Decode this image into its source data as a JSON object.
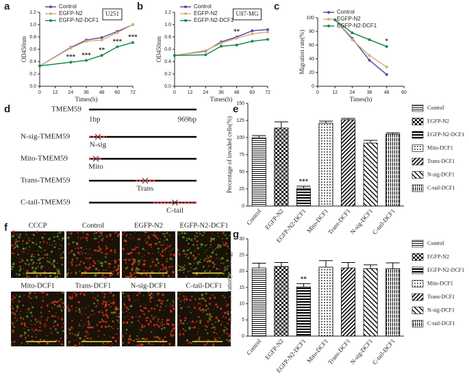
{
  "panel_labels": [
    "a",
    "b",
    "c",
    "d",
    "e",
    "f",
    "g"
  ],
  "chart_data": [
    {
      "type": "line",
      "title": "U251",
      "x_label": "Times(h)",
      "y_label": "OD450nm",
      "x": [
        0,
        24,
        36,
        48,
        60,
        72
      ],
      "xlim": [
        0,
        72
      ],
      "xticks": [
        0,
        12,
        24,
        36,
        48,
        60,
        72
      ],
      "ylim": [
        0,
        1.2
      ],
      "yticks": [
        {
          "value": 0,
          "label": "0.0"
        },
        {
          "value": 0.2,
          "label": "0.2"
        },
        {
          "value": 0.4,
          "label": "0.4"
        },
        {
          "value": 0.6,
          "label": "0.6"
        },
        {
          "value": 0.8,
          "label": "0.8"
        },
        {
          "value": 1,
          "label": "1.0"
        },
        {
          "value": 1.2,
          "label": "1.2"
        }
      ],
      "series": [
        {
          "name": "Control",
          "color": "#5b4ea0",
          "values": [
            0.33,
            0.63,
            0.75,
            0.79,
            0.89,
            1.0
          ]
        },
        {
          "name": "EGFP-N2",
          "color": "#d4b07a",
          "values": [
            0.33,
            0.62,
            0.73,
            0.75,
            0.87,
            1.0
          ]
        },
        {
          "name": "EGFP-N2-DCF1",
          "color": "#1a8a4a",
          "values": [
            0.33,
            0.39,
            0.42,
            0.5,
            0.64,
            0.71
          ]
        }
      ],
      "annotations": [
        null,
        "***",
        "***",
        "**",
        "***",
        "***"
      ]
    },
    {
      "type": "line",
      "title": "U87-MG",
      "x_label": "Times(h)",
      "y_label": "OD450nm",
      "x": [
        0,
        24,
        36,
        48,
        60,
        72
      ],
      "xlim": [
        0,
        72
      ],
      "xticks": [
        0,
        12,
        24,
        36,
        48,
        60,
        72
      ],
      "ylim": [
        0,
        1.2
      ],
      "yticks": [
        {
          "value": 0,
          "label": "0.0"
        },
        {
          "value": 0.2,
          "label": "0.2"
        },
        {
          "value": 0.4,
          "label": "0.4"
        },
        {
          "value": 0.6,
          "label": "0.6"
        },
        {
          "value": 0.8,
          "label": "0.8"
        },
        {
          "value": 1,
          "label": "1.0"
        },
        {
          "value": 1.2,
          "label": "1.2"
        }
      ],
      "series": [
        {
          "name": "Control",
          "color": "#5b4ea0",
          "values": [
            0.5,
            0.57,
            0.72,
            0.8,
            0.9,
            0.92
          ]
        },
        {
          "name": "EGFP-N2",
          "color": "#d4b07a",
          "values": [
            0.5,
            0.58,
            0.7,
            0.78,
            0.85,
            0.88
          ]
        },
        {
          "name": "EGFP-N2-DCF1",
          "color": "#1a8a4a",
          "values": [
            0.5,
            0.51,
            0.65,
            0.67,
            0.73,
            0.76
          ]
        }
      ],
      "annotations": [
        null,
        null,
        null,
        "**",
        null,
        null
      ]
    },
    {
      "type": "line",
      "x_label": "Times(h)",
      "y_label": "Migration rate(%)",
      "x": [
        12,
        24,
        36,
        48
      ],
      "xlim": [
        0,
        60
      ],
      "xticks": [
        0,
        12,
        24,
        36,
        48,
        60
      ],
      "ylim": [
        0,
        100
      ],
      "yticks": [
        0,
        20,
        40,
        60,
        80,
        100
      ],
      "series": [
        {
          "name": "Control",
          "color": "#5b4ea0",
          "values": [
            97,
            70,
            38,
            17
          ]
        },
        {
          "name": "EGFP-N2",
          "color": "#d4b07a",
          "values": [
            97,
            68,
            45,
            28
          ]
        },
        {
          "name": "EGFP-N2-DCF1",
          "color": "#1a8a4a",
          "values": [
            97,
            78,
            68,
            58
          ]
        }
      ],
      "annotations": [
        null,
        null,
        null,
        "*"
      ]
    },
    {
      "type": "bar",
      "y_label": "Percentage of invaded cells(%)",
      "categories": [
        "Control",
        "EGFP-N2",
        "EGFP-N2-DCF1",
        "Mito-DCF1",
        "Trans-DCF1",
        "N-sig-DCF1",
        "C-tail-DCF1"
      ],
      "values": [
        100,
        114,
        26,
        121,
        126,
        92,
        105
      ],
      "errors": [
        3,
        9,
        3,
        3,
        2,
        4,
        2
      ],
      "ylim": [
        0,
        150
      ],
      "yticks": [
        0,
        25,
        50,
        75,
        100,
        125,
        150
      ],
      "annotations": [
        null,
        null,
        "***",
        null,
        null,
        null,
        null
      ]
    },
    {
      "type": "bar",
      "y_label": "ATP concentration(nmol/mg)",
      "categories": [
        "Control",
        "EGFP-N2",
        "EGFP-N2-DCF1",
        "Mito-DCF1",
        "Trans-DCF1",
        "N-sig-DCF1",
        "C-tail-DCF1"
      ],
      "values": [
        21,
        21.5,
        15.2,
        21.3,
        21,
        20.8,
        20.8
      ],
      "errors": [
        1.5,
        1.2,
        1,
        2,
        1.7,
        1.2,
        1.8
      ],
      "ylim": [
        0,
        30
      ],
      "yticks": [
        0,
        5,
        10,
        15,
        20,
        25,
        30
      ],
      "annotations": [
        null,
        null,
        "**",
        null,
        null,
        null,
        null
      ]
    }
  ],
  "diagram": {
    "start": "1bp",
    "end": "969bp",
    "constructs": [
      {
        "name": "TMEM59"
      },
      {
        "name": "N-sig-TMEM59",
        "segment": "N-sig"
      },
      {
        "name": "Mito-TMEM59",
        "segment": "Mito"
      },
      {
        "name": "Trans-TMEM59",
        "segment": "Trans"
      },
      {
        "name": "C-tail-TMEM59",
        "segment": "C-tail"
      }
    ]
  },
  "micrographs": [
    "CCCP",
    "Control",
    "EGFP-N2",
    "EGFP-N2-DCF1",
    "Mito-DCF1",
    "Trans-DCF1",
    "N-sig-DCF1",
    "C-tail-DCF1"
  ]
}
